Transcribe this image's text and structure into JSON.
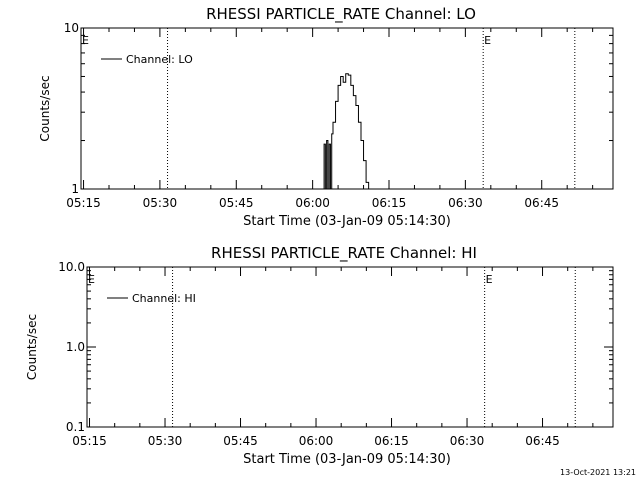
{
  "footer": {
    "timestamp": "13-Oct-2021 13:21"
  },
  "chart_data": [
    {
      "type": "line",
      "title": "RHESSI PARTICLE_RATE Channel: LO",
      "xlabel": "Start Time (03-Jan-09 05:14:30)",
      "ylabel": "Counts/sec",
      "yscale": "log",
      "xlim": [
        "05:14:30",
        "06:59:00"
      ],
      "ylim": [
        1,
        10
      ],
      "x_ticks": [
        "05:15",
        "05:30",
        "05:45",
        "06:00",
        "06:15",
        "06:30",
        "06:45"
      ],
      "y_ticks": [
        "1",
        "10"
      ],
      "legend": {
        "label": "Channel: LO",
        "position": "top-left"
      },
      "markers": [
        {
          "time": "05:31:30",
          "label": ""
        },
        {
          "time": "06:33:30",
          "label": "E"
        },
        {
          "time": "06:51:30",
          "label": ""
        }
      ],
      "start_marker_label": "E",
      "series": [
        {
          "name": "Channel: LO",
          "x": [
            "06:02:00",
            "06:02:15",
            "06:02:30",
            "06:02:45",
            "06:03:00",
            "06:03:15",
            "06:03:30",
            "06:03:45",
            "06:04:00",
            "06:04:30",
            "06:05:00",
            "06:05:30",
            "06:06:00",
            "06:06:30",
            "06:07:00",
            "06:07:30",
            "06:08:00",
            "06:08:30",
            "06:09:00",
            "06:09:30",
            "06:10:00",
            "06:10:30",
            "06:11:00"
          ],
          "y": [
            1,
            1.9,
            1,
            2.0,
            1,
            1.9,
            1,
            2.2,
            2.6,
            3.5,
            4.4,
            5.0,
            4.6,
            5.2,
            5.1,
            4.4,
            3.8,
            3.3,
            2.6,
            2.0,
            1.5,
            1.1,
            1.0
          ]
        }
      ],
      "grid": false
    },
    {
      "type": "line",
      "title": "RHESSI PARTICLE_RATE Channel: HI",
      "xlabel": "Start Time (03-Jan-09 05:14:30)",
      "ylabel": "Counts/sec",
      "yscale": "log",
      "xlim": [
        "05:14:30",
        "06:59:00"
      ],
      "ylim": [
        0.1,
        10
      ],
      "x_ticks": [
        "05:15",
        "05:30",
        "05:45",
        "06:00",
        "06:15",
        "06:30",
        "06:45"
      ],
      "y_ticks": [
        "0.1",
        "1.0",
        "10.0"
      ],
      "legend": {
        "label": "Channel: HI",
        "position": "top-left"
      },
      "markers": [
        {
          "time": "05:31:30",
          "label": ""
        },
        {
          "time": "06:33:30",
          "label": "E"
        },
        {
          "time": "06:51:30",
          "label": ""
        }
      ],
      "start_marker_label": "E",
      "series": [
        {
          "name": "Channel: HI",
          "x": [],
          "y": []
        }
      ],
      "grid": false
    }
  ]
}
